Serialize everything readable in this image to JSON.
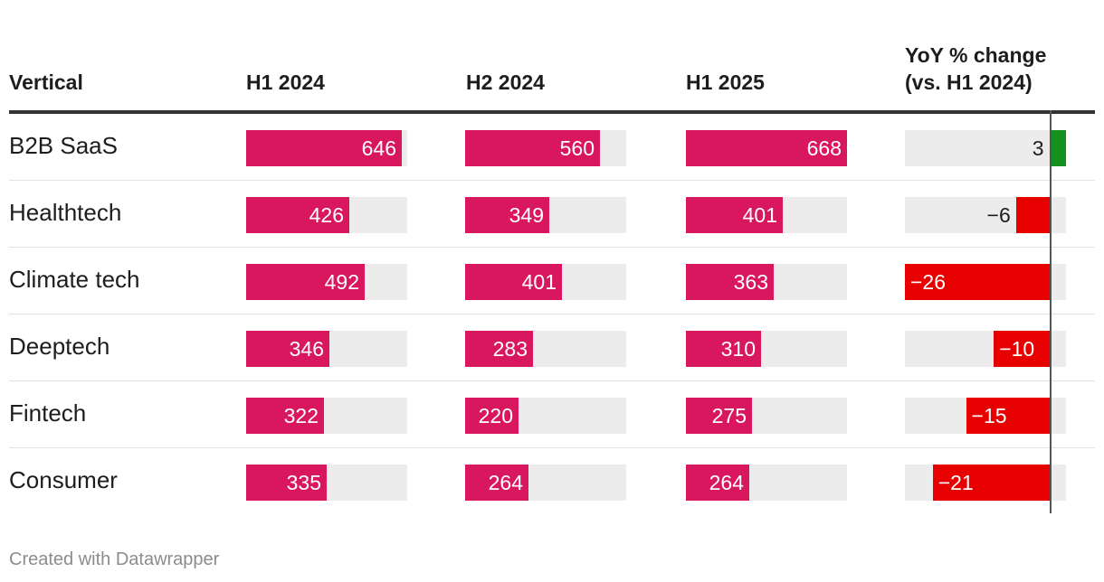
{
  "header": {
    "vertical": "Vertical",
    "h1_2024": "H1 2024",
    "h2_2024": "H2 2024",
    "h1_2025": "H1 2025",
    "yoy_line1": "YoY % change",
    "yoy_line2": "(vs. H1 2024)"
  },
  "footer": "Created with Datawrapper",
  "colors": {
    "bar": "#d8175e",
    "positive": "#15901f",
    "negative": "#e60000",
    "track": "#ececec"
  },
  "rows": [
    {
      "vertical": "B2B SaaS",
      "h1_2024": "646",
      "h2_2024": "560",
      "h1_2025": "668",
      "yoy": "3"
    },
    {
      "vertical": "Healthtech",
      "h1_2024": "426",
      "h2_2024": "349",
      "h1_2025": "401",
      "yoy": "−6"
    },
    {
      "vertical": "Climate tech",
      "h1_2024": "492",
      "h2_2024": "401",
      "h1_2025": "363",
      "yoy": "−26"
    },
    {
      "vertical": "Deeptech",
      "h1_2024": "346",
      "h2_2024": "283",
      "h1_2025": "310",
      "yoy": "−10"
    },
    {
      "vertical": "Fintech",
      "h1_2024": "322",
      "h2_2024": "220",
      "h1_2025": "275",
      "yoy": "−15"
    },
    {
      "vertical": "Consumer",
      "h1_2024": "335",
      "h2_2024": "264",
      "h1_2025": "264",
      "yoy": "−21"
    }
  ],
  "chart_data": {
    "type": "table",
    "categories": [
      "B2B SaaS",
      "Healthtech",
      "Climate tech",
      "Deeptech",
      "Fintech",
      "Consumer"
    ],
    "series": [
      {
        "name": "H1 2024",
        "values": [
          646,
          426,
          492,
          346,
          322,
          335
        ]
      },
      {
        "name": "H2 2024",
        "values": [
          560,
          349,
          401,
          283,
          220,
          264
        ]
      },
      {
        "name": "H1 2025",
        "values": [
          668,
          401,
          363,
          310,
          275,
          264
        ]
      },
      {
        "name": "YoY % change (vs. H1 2024)",
        "values": [
          3,
          -6,
          -26,
          -10,
          -15,
          -21
        ]
      }
    ],
    "bar_max": 668,
    "yoy_range": [
      -26,
      3
    ]
  }
}
